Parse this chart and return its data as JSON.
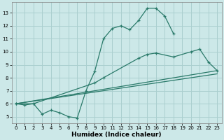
{
  "xlabel": "Humidex (Indice chaleur)",
  "xlim": [
    -0.5,
    23.5
  ],
  "ylim": [
    4.5,
    13.8
  ],
  "yticks": [
    5,
    6,
    7,
    8,
    9,
    10,
    11,
    12,
    13
  ],
  "xticks": [
    0,
    1,
    2,
    3,
    4,
    5,
    6,
    7,
    8,
    9,
    10,
    11,
    12,
    13,
    14,
    15,
    16,
    17,
    18,
    19,
    20,
    21,
    22,
    23
  ],
  "bg_color": "#cce8e8",
  "grid_color": "#aacfcf",
  "line_color": "#2a7a6a",
  "curve1_x": [
    0,
    1,
    2,
    3,
    4,
    5,
    6,
    7,
    8,
    9,
    10,
    11,
    12,
    13,
    14,
    15,
    16,
    17,
    18
  ],
  "curve1_y": [
    6.0,
    5.9,
    6.0,
    5.2,
    5.5,
    5.3,
    5.0,
    4.9,
    7.0,
    8.5,
    11.0,
    11.8,
    12.0,
    11.7,
    12.4,
    13.35,
    13.35,
    12.75,
    11.4
  ],
  "curve2_x": [
    0,
    2,
    9,
    10,
    14,
    15,
    16,
    18,
    20,
    21,
    22,
    23
  ],
  "curve2_y": [
    6.0,
    6.0,
    7.6,
    8.0,
    9.5,
    9.8,
    9.9,
    9.6,
    10.0,
    10.2,
    9.2,
    8.55
  ],
  "line3_x": [
    0,
    23
  ],
  "line3_y": [
    6.0,
    8.55
  ],
  "line4_x": [
    0,
    23
  ],
  "line4_y": [
    6.0,
    8.3
  ]
}
